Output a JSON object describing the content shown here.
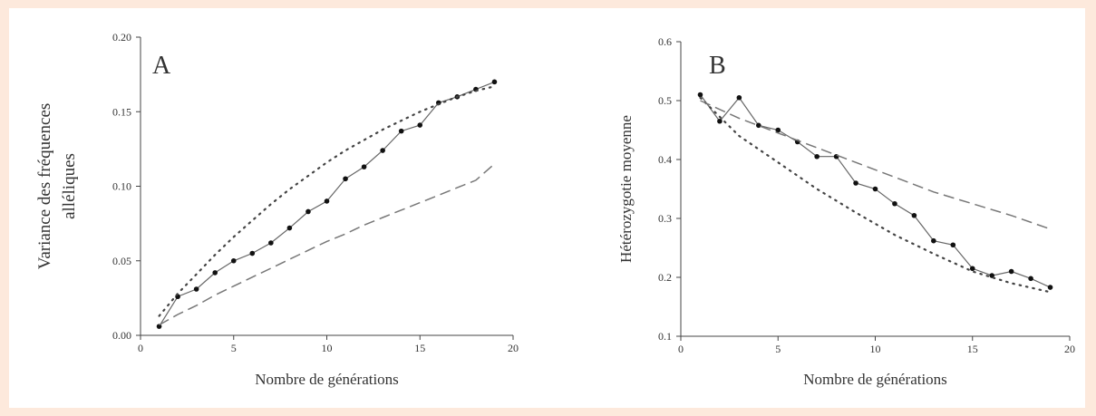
{
  "chart_data": [
    {
      "type": "line",
      "panel_label": "A",
      "xlabel": "Nombre de générations",
      "ylabel_line1": "Variance des fréquences",
      "ylabel_line2": "alléliques",
      "xlim": [
        0,
        20
      ],
      "ylim": [
        0,
        0.2
      ],
      "xticks": [
        0,
        5,
        10,
        15,
        20
      ],
      "yticks": [
        0.0,
        0.05,
        0.1,
        0.15,
        0.2
      ],
      "ytick_labels": [
        "0.00",
        "0.05",
        "0.10",
        "0.15",
        "0.20"
      ],
      "series": [
        {
          "style": "solid-markers",
          "x": [
            1,
            2,
            3,
            4,
            5,
            6,
            7,
            8,
            9,
            10,
            11,
            12,
            13,
            14,
            15,
            16,
            17,
            18,
            19
          ],
          "y": [
            0.006,
            0.026,
            0.031,
            0.042,
            0.05,
            0.055,
            0.062,
            0.072,
            0.083,
            0.09,
            0.105,
            0.113,
            0.124,
            0.137,
            0.141,
            0.156,
            0.16,
            0.165,
            0.17
          ]
        },
        {
          "style": "dotted",
          "x": [
            1,
            2,
            3,
            4,
            5,
            6,
            7,
            8,
            9,
            10,
            11,
            12,
            13,
            14,
            15,
            16,
            17,
            18,
            19
          ],
          "y": [
            0.013,
            0.028,
            0.041,
            0.054,
            0.066,
            0.077,
            0.088,
            0.098,
            0.107,
            0.116,
            0.124,
            0.131,
            0.138,
            0.144,
            0.15,
            0.155,
            0.16,
            0.164,
            0.167
          ]
        },
        {
          "style": "dashed",
          "x": [
            1,
            2,
            3,
            4,
            5,
            6,
            7,
            8,
            9,
            10,
            11,
            12,
            13,
            14,
            15,
            16,
            17,
            18,
            19
          ],
          "y": [
            0.007,
            0.014,
            0.02,
            0.027,
            0.033,
            0.039,
            0.045,
            0.051,
            0.057,
            0.063,
            0.068,
            0.074,
            0.079,
            0.084,
            0.089,
            0.094,
            0.099,
            0.104,
            0.115
          ]
        }
      ]
    },
    {
      "type": "line",
      "panel_label": "B",
      "xlabel": "Nombre de générations",
      "ylabel": "Hétérozygotie moyenne",
      "xlim": [
        0,
        20
      ],
      "ylim": [
        0.1,
        0.6
      ],
      "xticks": [
        0,
        5,
        10,
        15,
        20
      ],
      "yticks": [
        0.1,
        0.2,
        0.3,
        0.4,
        0.5,
        0.6
      ],
      "ytick_labels": [
        "0.1",
        "0.2",
        "0.3",
        "0.4",
        "0.5",
        "0.6"
      ],
      "series": [
        {
          "style": "solid-markers",
          "x": [
            1,
            2,
            3,
            4,
            5,
            6,
            7,
            8,
            9,
            10,
            11,
            12,
            13,
            14,
            15,
            16,
            17,
            18,
            19
          ],
          "y": [
            0.51,
            0.465,
            0.505,
            0.458,
            0.45,
            0.43,
            0.405,
            0.405,
            0.36,
            0.35,
            0.325,
            0.305,
            0.262,
            0.255,
            0.215,
            0.203,
            0.21,
            0.198,
            0.183
          ]
        },
        {
          "style": "dotted",
          "x": [
            1,
            3,
            5,
            7,
            9,
            11,
            13,
            15,
            17,
            19
          ],
          "y": [
            0.505,
            0.44,
            0.395,
            0.35,
            0.31,
            0.272,
            0.24,
            0.21,
            0.19,
            0.175
          ]
        },
        {
          "style": "dashed",
          "x": [
            1,
            3,
            5,
            7,
            9,
            11,
            13,
            15,
            17,
            19
          ],
          "y": [
            0.5,
            0.47,
            0.445,
            0.42,
            0.395,
            0.37,
            0.345,
            0.325,
            0.305,
            0.282
          ]
        }
      ]
    }
  ]
}
